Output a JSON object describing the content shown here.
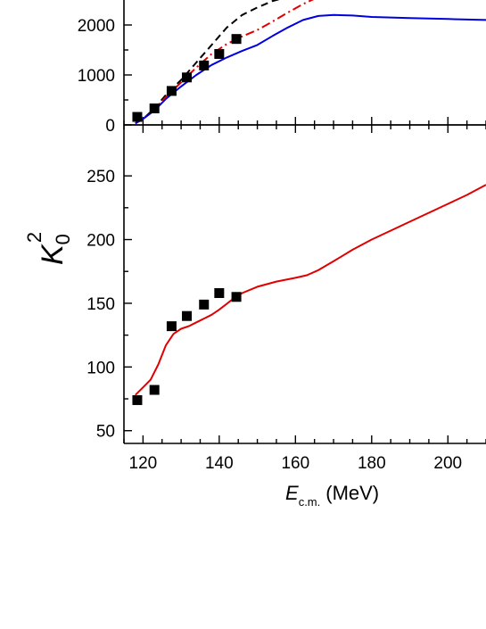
{
  "chart_data": [
    {
      "type": "line",
      "panel": "top",
      "xlim": [
        115,
        210
      ],
      "ylim": [
        0,
        2500
      ],
      "yticks": [
        0,
        1000,
        2000
      ],
      "ytick_labels": [
        "0",
        "1000",
        "2000"
      ],
      "series": [
        {
          "style": "dashed",
          "color": "#000000",
          "x": [
            118,
            120,
            123,
            126,
            130,
            134,
            138,
            142,
            146,
            150,
            154,
            158
          ],
          "y": [
            30,
            120,
            330,
            600,
            900,
            1250,
            1600,
            1950,
            2200,
            2350,
            2480,
            2560
          ]
        },
        {
          "style": "dash-dot",
          "color": "#e00000",
          "x": [
            118,
            120,
            123,
            126,
            130,
            134,
            138,
            142,
            146,
            150,
            154,
            158,
            162,
            166
          ],
          "y": [
            30,
            120,
            310,
            560,
            850,
            1150,
            1420,
            1620,
            1770,
            1900,
            2070,
            2250,
            2420,
            2560
          ]
        },
        {
          "style": "solid",
          "color": "#0000e0",
          "x": [
            118,
            120,
            123,
            126,
            130,
            134,
            138,
            142,
            146,
            150,
            154,
            158,
            162,
            166,
            170,
            175,
            180,
            190,
            200,
            210
          ],
          "y": [
            30,
            120,
            290,
            520,
            770,
            1000,
            1200,
            1350,
            1480,
            1600,
            1780,
            1950,
            2100,
            2180,
            2200,
            2190,
            2160,
            2140,
            2120,
            2100
          ]
        },
        {
          "style": "markers",
          "color": "#000000",
          "x": [
            118.5,
            123,
            127.5,
            131.5,
            136,
            140,
            144.5
          ],
          "y": [
            160,
            330,
            680,
            950,
            1190,
            1420,
            1720
          ]
        }
      ]
    },
    {
      "type": "line",
      "panel": "bottom",
      "xlim": [
        115,
        210
      ],
      "ylim": [
        40,
        290
      ],
      "xlabel_main": "E",
      "xlabel_sub": "c.m.",
      "xlabel_unit": "(MeV)",
      "ylabel_main": "K",
      "ylabel_sub": "0",
      "ylabel_sup": "2",
      "xticks": [
        120,
        140,
        160,
        180,
        200
      ],
      "xtick_labels": [
        "120",
        "140",
        "160",
        "180",
        "200"
      ],
      "yticks": [
        50,
        100,
        150,
        200,
        250
      ],
      "ytick_labels": [
        "50",
        "100",
        "150",
        "200",
        "250"
      ],
      "series": [
        {
          "style": "solid",
          "color": "#e00000",
          "x": [
            118,
            120,
            122,
            124,
            126,
            128,
            130,
            132,
            134,
            136,
            138,
            140,
            143,
            146,
            150,
            155,
            160,
            163,
            166,
            170,
            175,
            180,
            185,
            190,
            195,
            200,
            205,
            210
          ],
          "y": [
            78,
            84,
            90,
            102,
            117,
            126,
            130,
            132,
            135,
            138,
            141,
            145,
            152,
            158,
            163,
            167,
            170,
            172,
            176,
            183,
            192,
            200,
            207,
            214,
            221,
            228,
            235,
            243
          ]
        },
        {
          "style": "markers",
          "color": "#000000",
          "x": [
            118.5,
            123,
            127.5,
            131.5,
            136,
            140,
            144.5
          ],
          "y": [
            74,
            82,
            132,
            140,
            149,
            158,
            155
          ]
        }
      ]
    }
  ]
}
